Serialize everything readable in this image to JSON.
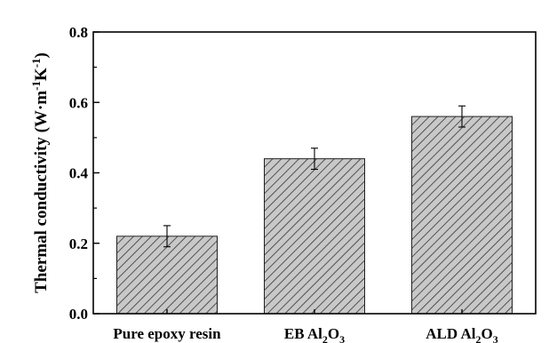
{
  "chart_data": {
    "type": "bar",
    "categories": [
      "Pure epoxy resin",
      "EB Al2O3",
      "ALD Al2O3"
    ],
    "category_labels": [
      {
        "main": "Pure epoxy resin"
      },
      {
        "main": "EB Al",
        "sub1": "2",
        "mid": "O",
        "sub2": "3"
      },
      {
        "main": "ALD Al",
        "sub1": "2",
        "mid": "O",
        "sub2": "3"
      }
    ],
    "values": [
      0.22,
      0.44,
      0.56
    ],
    "errors": [
      0.03,
      0.03,
      0.03
    ],
    "ylim": [
      0,
      0.8
    ],
    "yticks": [
      0.0,
      0.2,
      0.4,
      0.6,
      0.8
    ],
    "ytick_labels": [
      "0.0",
      "0.2",
      "0.4",
      "0.6",
      "0.8"
    ],
    "ylabel": {
      "prefix": "Thermal conductivity (W",
      "mid": "m",
      "sup1": "-1",
      "k": "K",
      "sup2": "-1",
      "suffix": ")"
    },
    "bar_fill": "#c8c8c8",
    "hatch_color": "#333333",
    "grid": false
  }
}
